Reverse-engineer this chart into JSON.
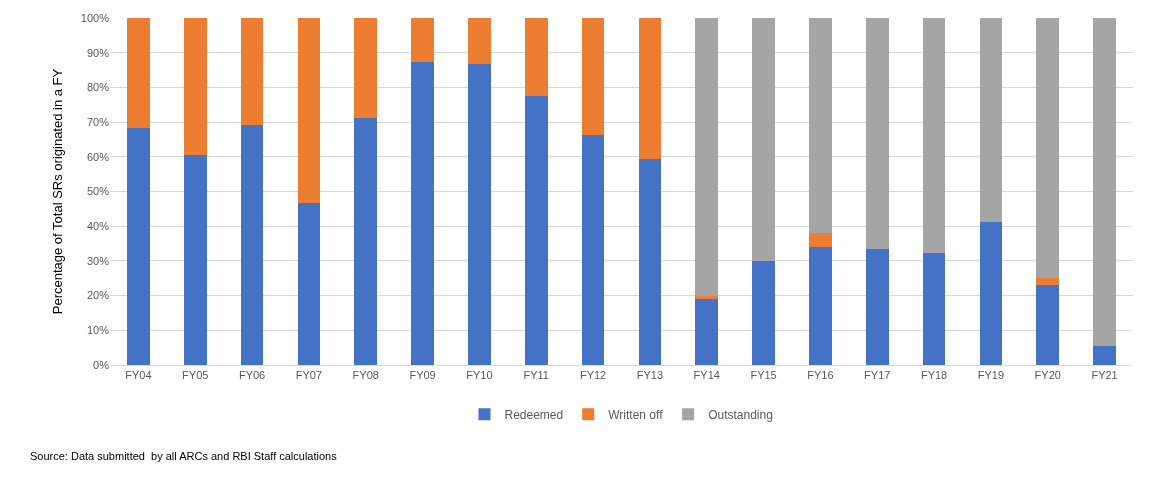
{
  "chart_data": {
    "type": "bar",
    "stacked": true,
    "ylabel": "Percentage of Total SRs originated in a FY",
    "categories": [
      "FY04",
      "FY05",
      "FY06",
      "FY07",
      "FY08",
      "FY09",
      "FY10",
      "FY11",
      "FY12",
      "FY13",
      "FY14",
      "FY15",
      "FY16",
      "FY17",
      "FY18",
      "FY19",
      "FY20",
      "FY21"
    ],
    "series": [
      {
        "name": "Redeemed",
        "color": "#4472c4",
        "values": [
          68.3,
          60.6,
          69.2,
          46.6,
          71.2,
          87.2,
          86.7,
          77.5,
          66.2,
          59.5,
          19,
          30,
          34,
          33.4,
          32.2,
          41.2,
          23.2,
          5.4
        ]
      },
      {
        "name": "Written off",
        "color": "#ed7d31",
        "values": [
          31.7,
          39.4,
          30.8,
          53.4,
          28.8,
          12.8,
          13.3,
          22.5,
          33.8,
          40.5,
          1,
          0,
          4,
          0,
          0,
          0,
          2,
          0
        ]
      },
      {
        "name": "Outstanding",
        "color": "#a5a5a5",
        "values": [
          0,
          0,
          0,
          0,
          0,
          0,
          0,
          0,
          0,
          0,
          80,
          70,
          62,
          66.6,
          67.8,
          58.8,
          74.8,
          94.6
        ]
      }
    ],
    "ylim": [
      0,
      100
    ],
    "yticks": [
      {
        "value": 0,
        "label": "0%"
      },
      {
        "value": 10,
        "label": "10%"
      },
      {
        "value": 20,
        "label": "20%"
      },
      {
        "value": 30,
        "label": "30%"
      },
      {
        "value": 40,
        "label": "40%"
      },
      {
        "value": 50,
        "label": "50%"
      },
      {
        "value": 60,
        "label": "60%"
      },
      {
        "value": 70,
        "label": "70%"
      },
      {
        "value": 80,
        "label": "80%"
      },
      {
        "value": 90,
        "label": "90%"
      },
      {
        "value": 100,
        "label": "100%"
      }
    ],
    "grid": "y",
    "legend": "bottom",
    "annotations": [
      "Source: Data submitted  by all ARCs and RBI Staff calculations"
    ]
  }
}
